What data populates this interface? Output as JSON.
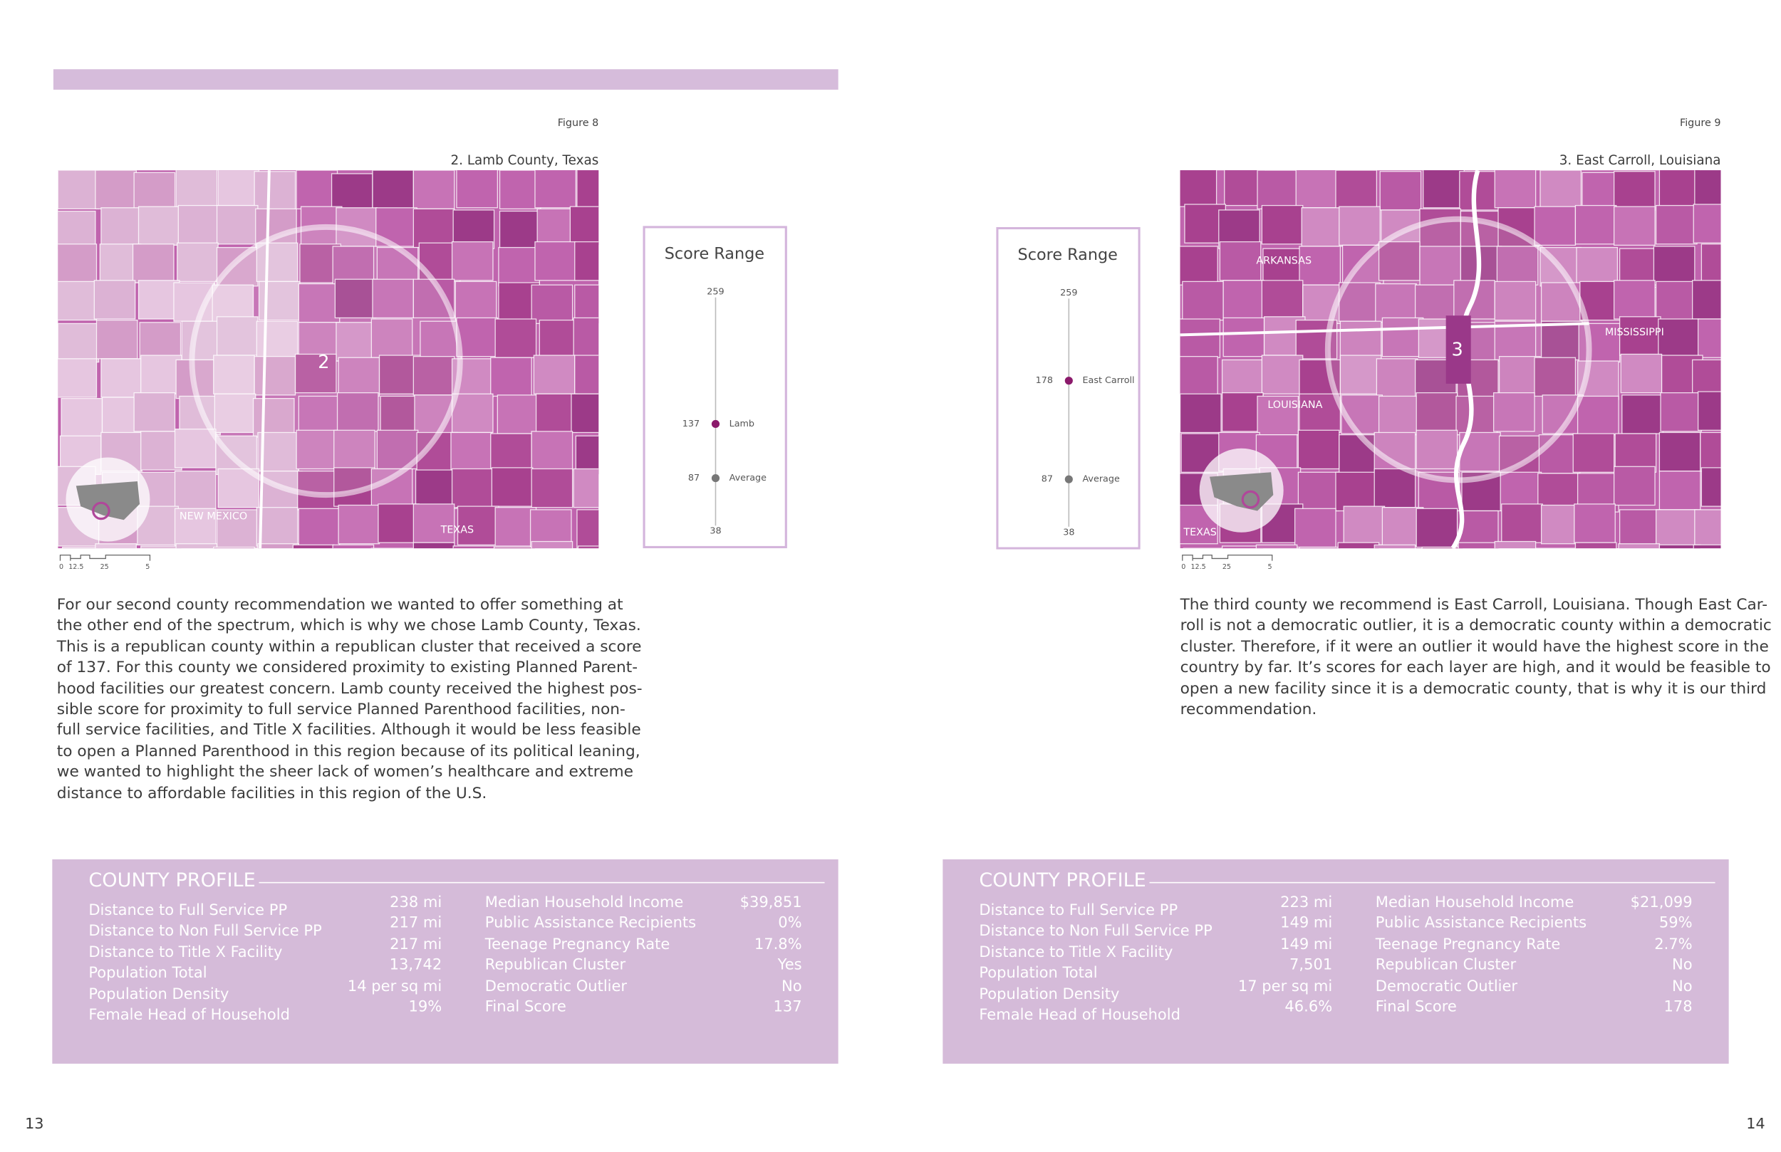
{
  "pages": [
    {
      "page_number": "13",
      "figure_label": "Figure 8",
      "map_title": "2. Lamb County, Texas",
      "map_labels": [
        "2",
        "NEW MEXICO",
        "TEXAS"
      ],
      "scale_labels": [
        "0",
        "12.5",
        "25",
        "5"
      ],
      "score_range": {
        "title": "Score Range",
        "max": 259,
        "min": 38,
        "markers": [
          {
            "label": "Lamb",
            "value": 137,
            "color": "#8b1a6b"
          },
          {
            "label": "Average",
            "value": 87,
            "color": "#777777"
          }
        ]
      },
      "paragraph_lines": [
        "For our second county recommendation we wanted to offer something at",
        "the other end of the spectrum, which is why we chose Lamb County, Texas.",
        "This is a republican county within a republican cluster that received a score",
        "of 137. For this county we considered proximity to existing Planned Parent-",
        "hood facilities our greatest concern. Lamb county received the highest pos-",
        "sible score for proximity to full service Planned Parenthood facilities, non-",
        "full service facilities, and Title X facilities. Although it would be less feasible",
        "to open a Planned Parenthood in this region because of its political leaning,",
        "we wanted to highlight the sheer lack of women’s healthcare and extreme",
        "distance to affordable facilities in this region of the U.S."
      ],
      "profile": {
        "title": "COUNTY PROFILE",
        "left": [
          {
            "label": "Distance to Full Service PP",
            "value": "238 mi"
          },
          {
            "label": "Distance to Non Full Service PP",
            "value": "217 mi"
          },
          {
            "label": "Distance to Title X Facility",
            "value": "217 mi"
          },
          {
            "label": "Population Total",
            "value": "13,742"
          },
          {
            "label": "Population Density",
            "value": "14 per sq mi"
          },
          {
            "label": "Female Head of Household",
            "value": "19%"
          }
        ],
        "right": [
          {
            "label": "Median Household Income",
            "value": "$39,851"
          },
          {
            "label": "Public Assistance Recipients",
            "value": "0%"
          },
          {
            "label": "Teenage Pregnancy Rate",
            "value": "17.8%"
          },
          {
            "label": "Republican Cluster",
            "value": "Yes"
          },
          {
            "label": "Democratic Outlier",
            "value": "No"
          },
          {
            "label": "Final Score",
            "value": "137"
          }
        ]
      }
    },
    {
      "page_number": "14",
      "figure_label": "Figure 9",
      "map_title": "3. East Carroll, Louisiana",
      "map_labels": [
        "3",
        "ARKANSAS",
        "LOUISIANA",
        "MISSISSIPPI",
        "TEXAS"
      ],
      "scale_labels": [
        "0",
        "12.5",
        "25",
        "5"
      ],
      "score_range": {
        "title": "Score Range",
        "max": 259,
        "min": 38,
        "markers": [
          {
            "label": "East Carroll",
            "value": 178,
            "color": "#8b1a6b"
          },
          {
            "label": "Average",
            "value": 87,
            "color": "#777777"
          }
        ]
      },
      "paragraph_lines": [
        "The third county we recommend is East Carroll, Louisiana. Though East Car-",
        "roll is not a democratic outlier, it is a democratic county within a democratic",
        "cluster. Therefore, if it were an outlier it would have the highest score in the",
        "country by far. It’s scores for each layer are high, and it would be feasible to",
        "open a new facility since it is a democratic county, that is why it is our third",
        "recommendation."
      ],
      "profile": {
        "title": "COUNTY PROFILE",
        "left": [
          {
            "label": "Distance to Full Service PP",
            "value": "223 mi"
          },
          {
            "label": "Distance to Non Full Service PP",
            "value": "149 mi"
          },
          {
            "label": "Distance to Title X Facility",
            "value": "149 mi"
          },
          {
            "label": "Population Total",
            "value": "7,501"
          },
          {
            "label": "Population Density",
            "value": "17 per sq mi"
          },
          {
            "label": "Female Head of Household",
            "value": "46.6%"
          }
        ],
        "right": [
          {
            "label": "Median Household Income",
            "value": "$21,099"
          },
          {
            "label": "Public Assistance Recipients",
            "value": "59%"
          },
          {
            "label": "Teenage Pregnancy Rate",
            "value": "2.7%"
          },
          {
            "label": "Republican Cluster",
            "value": "No"
          },
          {
            "label": "Democratic Outlier",
            "value": "No"
          },
          {
            "label": "Final Score",
            "value": "178"
          }
        ]
      }
    }
  ]
}
